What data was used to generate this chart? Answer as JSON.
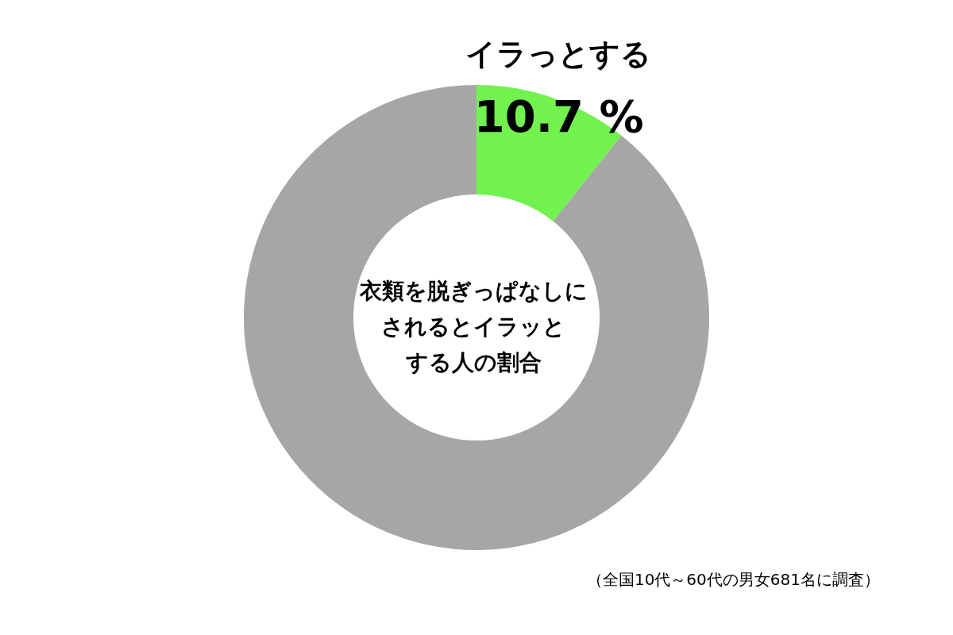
{
  "chart_data": {
    "type": "donut",
    "title": "衣類を脱ぎっぱなしにされるとイラッとする人の割合",
    "categories": [
      "イラっとする",
      null
    ],
    "values": [
      10.7,
      89.3
    ],
    "colors": [
      "#72f24f",
      "#a6a6a6"
    ],
    "value_labels": [
      "10.7 %",
      null
    ],
    "annotations": [
      "（全国10代～60代の男女681名に調査）"
    ]
  }
}
